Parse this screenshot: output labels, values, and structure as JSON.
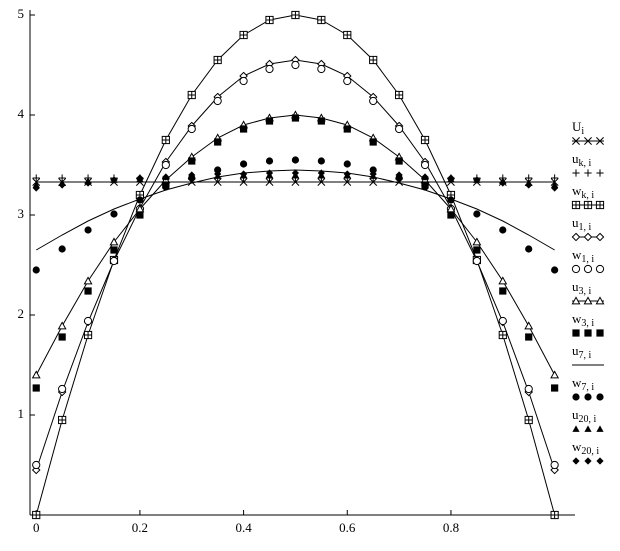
{
  "chart_data": {
    "type": "line",
    "x": [
      0,
      0.05,
      0.1,
      0.15,
      0.2,
      0.25,
      0.3,
      0.35,
      0.4,
      0.45,
      0.5,
      0.55,
      0.6,
      0.65,
      0.7,
      0.75,
      0.8,
      0.85,
      0.9,
      0.95,
      1
    ],
    "xlim": [
      -0.012,
      1.02
    ],
    "ylim": [
      0,
      5.05
    ],
    "xticks": [
      0,
      0.2,
      0.4,
      0.6,
      0.8
    ],
    "yticks": [
      1,
      2,
      3,
      4,
      5
    ],
    "series": [
      {
        "name": "U",
        "subscript": "i",
        "color": "#000",
        "marker": "x",
        "line": true,
        "values": [
          3.33,
          3.33,
          3.33,
          3.33,
          3.33,
          3.33,
          3.33,
          3.33,
          3.33,
          3.33,
          3.33,
          3.33,
          3.33,
          3.33,
          3.33,
          3.33,
          3.33,
          3.33,
          3.33,
          3.33,
          3.33
        ]
      },
      {
        "name": "u",
        "subscript": "k, i",
        "color": "#000",
        "marker": "plus",
        "line": false,
        "values": [
          3.37,
          3.37,
          3.37,
          3.37,
          3.37,
          3.37,
          3.37,
          3.37,
          3.37,
          3.37,
          3.37,
          3.37,
          3.37,
          3.37,
          3.37,
          3.37,
          3.37,
          3.37,
          3.37,
          3.37,
          3.37
        ]
      },
      {
        "name": "w",
        "subscript": "k, i",
        "color": "#000",
        "marker": "boxplus",
        "line": true,
        "values": [
          0,
          0.95,
          1.8,
          2.55,
          3.2,
          3.75,
          4.2,
          4.55,
          4.8,
          4.95,
          5,
          4.95,
          4.8,
          4.55,
          4.2,
          3.75,
          3.2,
          2.55,
          1.8,
          0.95,
          0
        ]
      },
      {
        "name": "u",
        "subscript": "1, i",
        "color": "#000",
        "marker": "diamond",
        "line": true,
        "values": [
          0.45,
          1.23,
          1.93,
          2.54,
          3.07,
          3.53,
          3.89,
          4.18,
          4.39,
          4.51,
          4.55,
          4.51,
          4.39,
          4.18,
          3.89,
          3.53,
          3.07,
          2.54,
          1.93,
          1.23,
          0.45
        ]
      },
      {
        "name": "w",
        "subscript": "1, i",
        "color": "#000",
        "marker": "circle",
        "line": false,
        "values": [
          0.5,
          1.26,
          1.94,
          2.54,
          3.06,
          3.5,
          3.86,
          4.14,
          4.34,
          4.46,
          4.5,
          4.46,
          4.34,
          4.14,
          3.86,
          3.5,
          3.06,
          2.54,
          1.94,
          1.26,
          0.5
        ]
      },
      {
        "name": "u",
        "subscript": "3, i",
        "color": "#000",
        "marker": "triangle",
        "line": true,
        "values": [
          1.4,
          1.89,
          2.34,
          2.73,
          3.06,
          3.35,
          3.58,
          3.77,
          3.9,
          3.97,
          4,
          3.97,
          3.9,
          3.77,
          3.58,
          3.35,
          3.06,
          2.73,
          2.34,
          1.89,
          1.4
        ]
      },
      {
        "name": "w",
        "subscript": "3, i",
        "color": "#000",
        "marker": "square-filled",
        "line": false,
        "values": [
          1.27,
          1.78,
          2.24,
          2.65,
          3.0,
          3.3,
          3.54,
          3.73,
          3.86,
          3.94,
          3.97,
          3.94,
          3.86,
          3.73,
          3.54,
          3.3,
          3.0,
          2.65,
          2.24,
          1.78,
          1.27
        ]
      },
      {
        "name": "u",
        "subscript": "7, i",
        "color": "#000",
        "marker": "none",
        "line": true,
        "values": [
          2.65,
          2.8,
          2.94,
          3.06,
          3.16,
          3.25,
          3.32,
          3.38,
          3.42,
          3.44,
          3.45,
          3.44,
          3.42,
          3.38,
          3.32,
          3.25,
          3.16,
          3.06,
          2.94,
          2.8,
          2.65
        ]
      },
      {
        "name": "w",
        "subscript": "7, i",
        "color": "#000",
        "marker": "dot-filled",
        "line": false,
        "values": [
          2.45,
          2.66,
          2.85,
          3.01,
          3.15,
          3.28,
          3.37,
          3.45,
          3.51,
          3.54,
          3.55,
          3.54,
          3.51,
          3.45,
          3.37,
          3.28,
          3.15,
          3.01,
          2.85,
          2.66,
          2.45
        ]
      },
      {
        "name": "u",
        "subscript": "20, i",
        "color": "#000",
        "marker": "triangle-filled",
        "line": false,
        "values": [
          3.3,
          3.32,
          3.34,
          3.35,
          3.36,
          3.38,
          3.38,
          3.39,
          3.4,
          3.4,
          3.4,
          3.4,
          3.4,
          3.39,
          3.38,
          3.38,
          3.36,
          3.35,
          3.34,
          3.32,
          3.3
        ]
      },
      {
        "name": "w",
        "subscript": "20, i",
        "color": "#000",
        "marker": "diamond-filled",
        "line": false,
        "values": [
          3.27,
          3.3,
          3.32,
          3.35,
          3.37,
          3.38,
          3.4,
          3.41,
          3.41,
          3.42,
          3.42,
          3.42,
          3.41,
          3.41,
          3.4,
          3.38,
          3.37,
          3.35,
          3.32,
          3.3,
          3.27
        ]
      }
    ]
  }
}
